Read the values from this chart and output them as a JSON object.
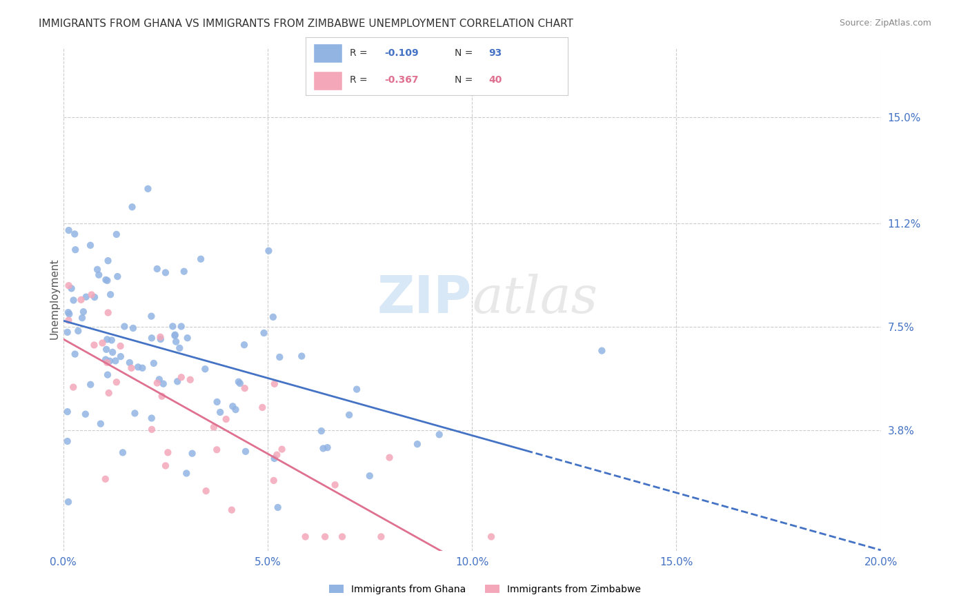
{
  "title": "IMMIGRANTS FROM GHANA VS IMMIGRANTS FROM ZIMBABWE UNEMPLOYMENT CORRELATION CHART",
  "source": "Source: ZipAtlas.com",
  "ylabel": "Unemployment",
  "xlim": [
    0.0,
    0.2
  ],
  "ylim": [
    -0.005,
    0.175
  ],
  "xticks": [
    0.0,
    0.05,
    0.1,
    0.15,
    0.2
  ],
  "xticklabels": [
    "0.0%",
    "5.0%",
    "10.0%",
    "15.0%",
    "20.0%"
  ],
  "yticks": [
    0.038,
    0.075,
    0.112,
    0.15
  ],
  "yticklabels": [
    "3.8%",
    "7.5%",
    "11.2%",
    "15.0%"
  ],
  "ghana_color": "#92b4e3",
  "zimbabwe_color": "#f4a7b9",
  "ghana_line_color": "#4472c4",
  "zimbabwe_line_color": "#e07090",
  "ghana_R": -0.109,
  "ghana_N": 93,
  "zimbabwe_R": -0.367,
  "zimbabwe_N": 40,
  "background_color": "#ffffff",
  "grid_color": "#cccccc",
  "axis_label_color": "#4472c4",
  "trend_solid_end_ghana": 0.115,
  "trend_dashed_start_ghana": 0.115
}
